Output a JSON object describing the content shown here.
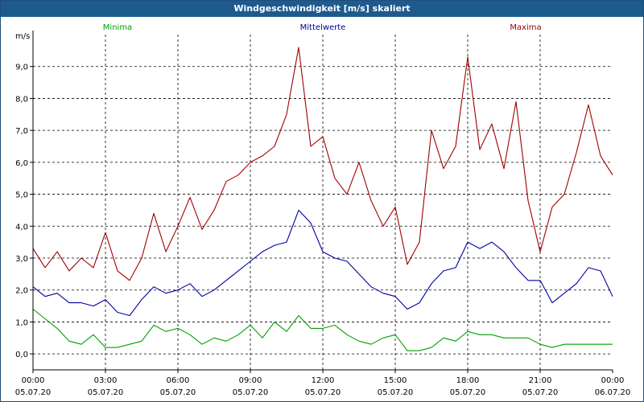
{
  "window": {
    "title": "Windgeschwindigkeit [m/s] skaliert"
  },
  "chart_data": {
    "type": "line",
    "title": "Windgeschwindigkeit [m/s] skaliert",
    "ylabel": "m/s",
    "ylim": [
      -0.5,
      10.0
    ],
    "yticks": [
      0,
      1,
      2,
      3,
      4,
      5,
      6,
      7,
      8,
      9
    ],
    "ytick_labels": [
      "0,0",
      "1,0",
      "2,0",
      "3,0",
      "4,0",
      "5,0",
      "6,0",
      "7,0",
      "8,0",
      "9,0"
    ],
    "xlim": [
      0,
      24
    ],
    "xticks": [
      0,
      3,
      6,
      9,
      12,
      15,
      18,
      21,
      24
    ],
    "xtick_labels": [
      [
        "00:00",
        "05.07.20"
      ],
      [
        "03:00",
        "05.07.20"
      ],
      [
        "06:00",
        "05.07.20"
      ],
      [
        "09:00",
        "05.07.20"
      ],
      [
        "12:00",
        "05.07.20"
      ],
      [
        "15:00",
        "05.07.20"
      ],
      [
        "18:00",
        "05.07.20"
      ],
      [
        "21:00",
        "05.07.20"
      ],
      [
        "00:00",
        "06.07.20"
      ]
    ],
    "grid": true,
    "legend_position": "top",
    "series": [
      {
        "name": "Minima",
        "color": "#00a000",
        "x": [
          0.0,
          0.5,
          1.0,
          1.5,
          2.0,
          2.5,
          3.0,
          3.5,
          4.0,
          4.5,
          5.0,
          5.5,
          6.0,
          6.5,
          7.0,
          7.5,
          8.0,
          8.5,
          9.0,
          9.5,
          10.0,
          10.5,
          11.0,
          11.5,
          12.0,
          12.5,
          13.0,
          13.5,
          14.0,
          14.5,
          15.0,
          15.5,
          16.0,
          16.5,
          17.0,
          17.5,
          18.0,
          18.5,
          19.0,
          19.5,
          20.0,
          20.5,
          21.0,
          21.5,
          22.0,
          22.5,
          23.0,
          23.5,
          24.0
        ],
        "values": [
          1.4,
          1.1,
          0.8,
          0.4,
          0.3,
          0.6,
          0.2,
          0.2,
          0.3,
          0.4,
          0.9,
          0.7,
          0.8,
          0.6,
          0.3,
          0.5,
          0.4,
          0.6,
          0.9,
          0.5,
          1.0,
          0.7,
          1.2,
          0.8,
          0.8,
          0.9,
          0.6,
          0.4,
          0.3,
          0.5,
          0.6,
          0.1,
          0.1,
          0.2,
          0.5,
          0.4,
          0.7,
          0.6,
          0.6,
          0.5,
          0.5,
          0.5,
          0.3,
          0.2,
          0.3,
          0.3,
          0.3,
          0.3,
          0.3
        ]
      },
      {
        "name": "Mittelwerte",
        "color": "#0000a0",
        "x": [
          0.0,
          0.5,
          1.0,
          1.5,
          2.0,
          2.5,
          3.0,
          3.5,
          4.0,
          4.5,
          5.0,
          5.5,
          6.0,
          6.5,
          7.0,
          7.5,
          8.0,
          8.5,
          9.0,
          9.5,
          10.0,
          10.5,
          11.0,
          11.5,
          12.0,
          12.5,
          13.0,
          13.5,
          14.0,
          14.5,
          15.0,
          15.5,
          16.0,
          16.5,
          17.0,
          17.5,
          18.0,
          18.5,
          19.0,
          19.5,
          20.0,
          20.5,
          21.0,
          21.5,
          22.0,
          22.5,
          23.0,
          23.5,
          24.0
        ],
        "values": [
          2.1,
          1.8,
          1.9,
          1.6,
          1.6,
          1.5,
          1.7,
          1.3,
          1.2,
          1.7,
          2.1,
          1.9,
          2.0,
          2.2,
          1.8,
          2.0,
          2.3,
          2.6,
          2.9,
          3.2,
          3.4,
          3.5,
          4.5,
          4.1,
          3.2,
          3.0,
          2.9,
          2.5,
          2.1,
          1.9,
          1.8,
          1.4,
          1.6,
          2.2,
          2.6,
          2.7,
          3.5,
          3.3,
          3.5,
          3.2,
          2.7,
          2.3,
          2.3,
          1.6,
          1.9,
          2.2,
          2.7,
          2.6,
          1.8
        ]
      },
      {
        "name": "Maxima",
        "color": "#a00000",
        "x": [
          0.0,
          0.5,
          1.0,
          1.5,
          2.0,
          2.5,
          3.0,
          3.5,
          4.0,
          4.5,
          5.0,
          5.5,
          6.0,
          6.5,
          7.0,
          7.5,
          8.0,
          8.5,
          9.0,
          9.5,
          10.0,
          10.5,
          11.0,
          11.5,
          12.0,
          12.5,
          13.0,
          13.5,
          14.0,
          14.5,
          15.0,
          15.5,
          16.0,
          16.5,
          17.0,
          17.5,
          18.0,
          18.5,
          19.0,
          19.5,
          20.0,
          20.5,
          21.0,
          21.5,
          22.0,
          22.5,
          23.0,
          23.5,
          24.0
        ],
        "values": [
          3.3,
          2.7,
          3.2,
          2.6,
          3.0,
          2.7,
          3.8,
          2.6,
          2.3,
          3.0,
          4.4,
          3.2,
          4.0,
          4.9,
          3.9,
          4.5,
          5.4,
          5.6,
          6.0,
          6.2,
          6.5,
          7.5,
          9.6,
          6.5,
          6.8,
          5.5,
          5.0,
          6.0,
          4.8,
          4.0,
          4.6,
          2.8,
          3.5,
          7.0,
          5.8,
          6.5,
          9.3,
          6.4,
          7.2,
          5.8,
          7.9,
          4.8,
          3.2,
          4.6,
          5.0,
          6.3,
          7.8,
          6.2,
          5.6
        ]
      }
    ]
  }
}
